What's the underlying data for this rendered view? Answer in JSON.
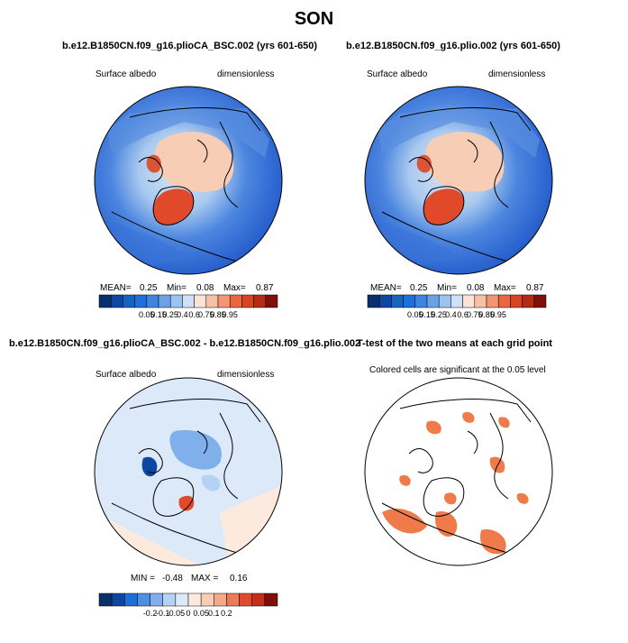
{
  "main_title": "SON",
  "panels": [
    {
      "title": "b.e12.B1850CN.f09_g16.plioCA_BSC.002 (yrs 601-650)",
      "left_label": "Surface albedo",
      "right_label": "dimensionless",
      "stats": {
        "mean_label": "MEAN=",
        "mean": "0.25",
        "min_label": "Min=",
        "min": "0.08",
        "max_label": "Max=",
        "max": "0.87"
      },
      "colorbar": {
        "ticks": [
          "0.05",
          "0.15",
          "0.25",
          "0.4",
          "0.6",
          "0.75",
          "0.85",
          "0.95"
        ],
        "colors": [
          "#08306b",
          "#0d47a1",
          "#1565c0",
          "#1e6fd9",
          "#3d85e0",
          "#6aa2e8",
          "#9cc2f0",
          "#cfe0f7",
          "#fbe3d6",
          "#f7c0a5",
          "#f29672",
          "#e9673f",
          "#d84321",
          "#b32b15",
          "#7f0f0a"
        ]
      },
      "chart_data": {
        "type": "heatmap",
        "projection": "north-polar-stereographic",
        "variable": "Surface albedo",
        "units": "dimensionless",
        "mean": 0.25,
        "min": 0.08,
        "max": 0.87,
        "color_levels": [
          0.05,
          0.15,
          0.25,
          0.4,
          0.6,
          0.75,
          0.85,
          0.95
        ]
      }
    },
    {
      "title": "b.e12.B1850CN.f09_g16.plio.002 (yrs 601-650)",
      "left_label": "Surface albedo",
      "right_label": "dimensionless",
      "stats": {
        "mean_label": "MEAN=",
        "mean": "0.25",
        "min_label": "Min=",
        "min": "0.08",
        "max_label": "Max=",
        "max": "0.87"
      },
      "colorbar": {
        "ticks": [
          "0.05",
          "0.15",
          "0.25",
          "0.4",
          "0.6",
          "0.75",
          "0.85",
          "0.95"
        ],
        "colors": [
          "#08306b",
          "#0d47a1",
          "#1565c0",
          "#1e6fd9",
          "#3d85e0",
          "#6aa2e8",
          "#9cc2f0",
          "#cfe0f7",
          "#fbe3d6",
          "#f7c0a5",
          "#f29672",
          "#e9673f",
          "#d84321",
          "#b32b15",
          "#7f0f0a"
        ]
      },
      "chart_data": {
        "type": "heatmap",
        "projection": "north-polar-stereographic",
        "variable": "Surface albedo",
        "units": "dimensionless",
        "mean": 0.25,
        "min": 0.08,
        "max": 0.87,
        "color_levels": [
          0.05,
          0.15,
          0.25,
          0.4,
          0.6,
          0.75,
          0.85,
          0.95
        ]
      }
    },
    {
      "title": "b.e12.B1850CN.f09_g16.plioCA_BSC.002 - b.e12.B1850CN.f09_g16.plio.002",
      "left_label": "Surface albedo",
      "right_label": "dimensionless",
      "stats": {
        "min_label": "MIN =",
        "min": "-0.48",
        "max_label": "MAX =",
        "max": "0.16"
      },
      "colorbar": {
        "ticks": [
          "-0.2",
          "-0.1",
          "-0.05",
          "0",
          "0.05",
          "0.1",
          "0.2"
        ],
        "colors": [
          "#08306b",
          "#0d47a1",
          "#1e6fd9",
          "#4f8fe3",
          "#7fb0ec",
          "#b5d2f4",
          "#dbe9f9",
          "#fdeadf",
          "#f9cdb6",
          "#f4a988",
          "#ec7a54",
          "#e04a2a",
          "#c1301a",
          "#7f0f0a"
        ]
      },
      "chart_data": {
        "type": "heatmap",
        "projection": "north-polar-stereographic",
        "variable": "Surface albedo difference",
        "units": "dimensionless",
        "min": -0.48,
        "max": 0.16,
        "color_levels": [
          -0.2,
          -0.1,
          -0.05,
          0,
          0.05,
          0.1,
          0.2
        ]
      }
    },
    {
      "title": "T-test of the two means at each grid point",
      "subtitle": "Colored cells are significant at the 0.05 level",
      "chart_data": {
        "type": "heatmap",
        "projection": "north-polar-stereographic",
        "significance_level": 0.05,
        "colors": {
          "significant": "#f07b4a",
          "not_significant": "#ffffff"
        }
      }
    }
  ],
  "colors": {
    "land_outline": "#000000",
    "albedo_high": "#f7c9b0",
    "albedo_low": "#2a64d6"
  }
}
